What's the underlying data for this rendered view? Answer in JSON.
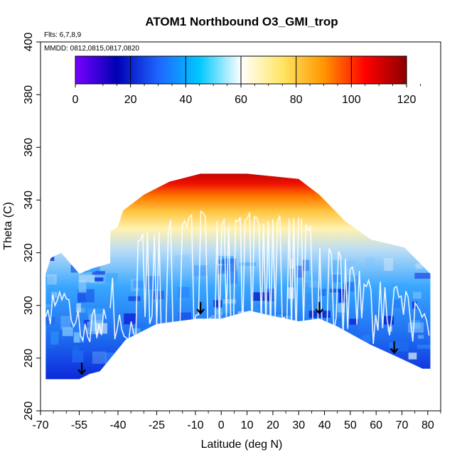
{
  "chart_data": {
    "type": "heatmap",
    "title": "ATOM1 Northbound O3_GMI_trop",
    "annotations": [
      "Flts: 6,7,8,9",
      "MMDD: 0812,0815,0817,0820"
    ],
    "xlabel": "Latitude (deg N)",
    "ylabel": "Theta (C)",
    "xlim": [
      -70,
      85
    ],
    "ylim": [
      260,
      400
    ],
    "xticks": [
      -70,
      -55,
      -40,
      -25,
      -10,
      0,
      10,
      20,
      30,
      40,
      50,
      60,
      70,
      80
    ],
    "xticklabels": [
      "-70",
      "-55",
      "-40",
      "-25",
      "-10",
      "0",
      "10",
      "20",
      "30",
      "40",
      "50",
      "60",
      "70",
      "80"
    ],
    "yticks": [
      260,
      280,
      300,
      320,
      340,
      360,
      380,
      400
    ],
    "yticklabels": [
      "260",
      "280",
      "300",
      "320",
      "340",
      "360",
      "380",
      "400"
    ],
    "colorbar": {
      "min": 0,
      "max": 120,
      "ticks": [
        0,
        20,
        40,
        60,
        80,
        100,
        120
      ],
      "ticklabels": [
        "0",
        "20",
        "40",
        "60",
        "80",
        "100",
        "120"
      ],
      "colors": [
        "#7a00ff",
        "#0000b4",
        "#1e64ff",
        "#00c8ff",
        "#ffffff",
        "#ffe664",
        "#ff9600",
        "#ff0000",
        "#8c0000"
      ]
    },
    "domain_profile": {
      "latitude": [
        -68,
        -67,
        -64,
        -55,
        -51,
        -47,
        -37,
        -25,
        -9,
        0,
        11,
        20,
        30,
        38,
        45,
        58,
        67,
        78,
        81,
        81,
        78,
        71,
        58,
        48,
        38,
        30,
        10,
        -8,
        -20,
        -30,
        -38,
        -40,
        -43,
        -43,
        -50,
        -55,
        -62,
        -66,
        -68
      ],
      "theta_top": [
        272,
        272,
        272,
        272,
        274,
        275,
        287,
        293,
        295,
        295,
        298,
        296,
        294,
        295,
        292,
        285,
        281,
        276,
        276,
        312,
        315,
        322,
        325,
        332,
        342,
        348,
        350,
        350,
        347,
        342,
        336,
        330,
        328,
        316,
        314,
        312,
        320,
        318,
        312
      ],
      "theta_units": "C"
    },
    "flight_segments": [
      {
        "lat_range": [
          -68,
          -43
        ],
        "o3_range": [
          30,
          110
        ]
      },
      {
        "lat_range": [
          -43,
          30
        ],
        "o3_range": [
          10,
          110
        ]
      },
      {
        "lat_range": [
          30,
          81
        ],
        "o3_range": [
          10,
          110
        ]
      }
    ],
    "arrow_markers": [
      {
        "latitude": -54,
        "theta": 274
      },
      {
        "latitude": -8,
        "theta": 297
      },
      {
        "latitude": 38,
        "theta": 297
      },
      {
        "latitude": 67,
        "theta": 282
      }
    ]
  }
}
